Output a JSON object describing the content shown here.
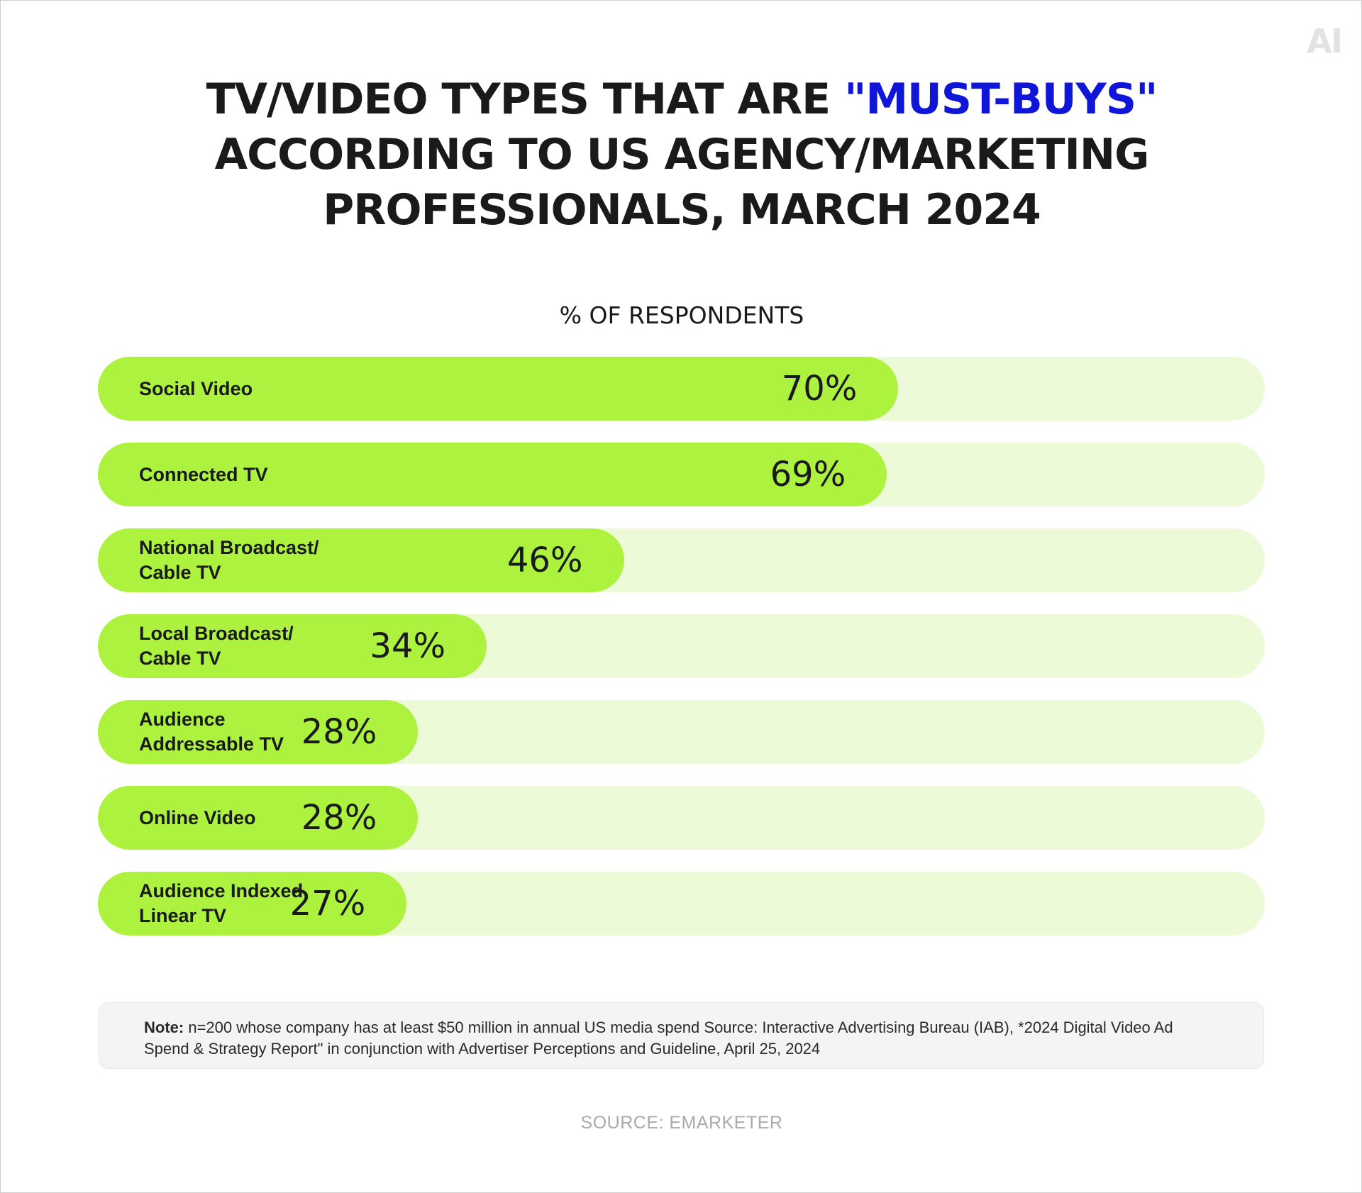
{
  "brand": {
    "logo_text": "AI"
  },
  "chart_data": {
    "type": "bar",
    "orientation": "horizontal",
    "title_part1": "TV/VIDEO TYPES THAT ARE ",
    "title_highlight": "\"MUST-BUYS\"",
    "title_line2": "ACCORDING TO US AGENCY/MARKETING",
    "title_line3": "PROFESSIONALS, MARCH 2024",
    "subtitle": "% OF RESPONDENTS",
    "categories": [
      "Social Video",
      "Connected TV",
      "National Broadcast/\nCable TV",
      "Local Broadcast/\nCable TV",
      "Audience\nAddressable TV",
      "Online Video",
      "Audience Indexed\nLinear TV"
    ],
    "values": [
      70,
      69,
      46,
      34,
      28,
      28,
      27
    ],
    "value_labels": [
      "70%",
      "69%",
      "46%",
      "34%",
      "28%",
      "28%",
      "27%"
    ],
    "xlim": [
      0,
      100
    ],
    "grid": false,
    "colors": {
      "fill": "#adf23f",
      "track": "#edfad7",
      "highlight": "#1016d8"
    }
  },
  "note": {
    "label": "Note:",
    "text": " n=200 whose company has at least $50 million in annual US media spend Source: Interactive Advertising Bureau (IAB), *2024 Digital Video Ad Spend & Strategy Report\" in conjunction with Advertiser Perceptions and Guideline, April 25, 2024"
  },
  "source": "SOURCE: EMARKETER"
}
